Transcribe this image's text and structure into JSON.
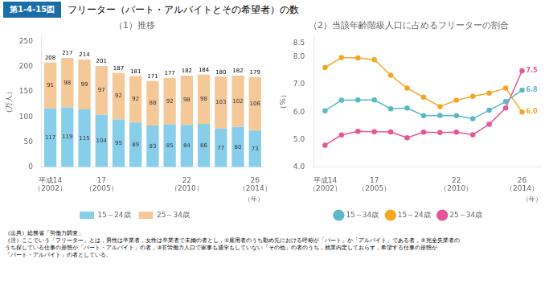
{
  "title_badge": {
    "text": "第1-4-15図",
    "color": "#1A6EA8"
  },
  "title": "フリーター（パート・アルバイトとその希望者）の数",
  "notes": [
    "（出典）総務省「労働力調査」",
    "（注）ここでいう「フリーター」とは，男性は卒業者，女性は卒業者で未婚の者とし，①雇用者のうち勤め先における呼称が「パート」か「アルバイト」である者，②完全失業者の",
    "うち探している仕事の形態が「パート・アルバイト」の者，③非労働力人口で家事も通学もしていない「その他」の者のうち，就業内定しておらず，希望する仕事の形態が",
    "「パート・アルバイト」の者としている。"
  ],
  "chart_data": [
    {
      "type": "bar",
      "stacked": true,
      "subtitle": "（1）推移",
      "xlabel": "（年）",
      "ylabel": "（万人）",
      "categories": [
        "平成14\n（2002）",
        null,
        null,
        "17\n（2005）",
        null,
        null,
        null,
        null,
        "22\n（2010）",
        null,
        null,
        null,
        "26\n（2014）"
      ],
      "series": [
        {
          "name": "15～24歳",
          "color": "#87CEEB",
          "values": [
            117,
            119,
            115,
            104,
            95,
            89,
            83,
            85,
            84,
            86,
            77,
            80,
            73
          ]
        },
        {
          "name": "25～34歳",
          "color": "#F5C897",
          "values": [
            91,
            98,
            99,
            97,
            92,
            92,
            88,
            92,
            98,
            98,
            103,
            102,
            106
          ]
        }
      ],
      "totals": [
        208,
        217,
        214,
        201,
        187,
        181,
        171,
        177,
        182,
        184,
        180,
        182,
        179
      ],
      "data_labels": true,
      "ylim": [
        0,
        260
      ],
      "yticks": [
        0,
        50,
        100,
        150,
        200,
        250
      ],
      "grid": false,
      "legend": "bottom"
    },
    {
      "type": "line",
      "subtitle": "（2）当該年齢階級人口に占めるフリーターの割合",
      "xlabel": "（年）",
      "ylabel": "（%）",
      "x": [
        14,
        15,
        16,
        17,
        18,
        19,
        20,
        21,
        22,
        23,
        24,
        25,
        26
      ],
      "series": [
        {
          "name": "15～34歳",
          "color": "#5BB8C8",
          "marker": "circle",
          "values": [
            6.05,
            6.43,
            6.44,
            6.44,
            6.12,
            6.15,
            5.87,
            5.88,
            5.87,
            5.76,
            6.07,
            6.38,
            6.8
          ]
        },
        {
          "name": "15～24歳",
          "color": "#F5A623",
          "marker": "circle",
          "values": [
            7.62,
            7.98,
            7.97,
            7.9,
            7.34,
            6.87,
            6.54,
            6.2,
            6.43,
            6.57,
            6.69,
            6.87,
            6.0
          ]
        },
        {
          "name": "25～34歳",
          "color": "#E8559A",
          "marker": "circle",
          "values": [
            4.8,
            5.17,
            5.3,
            5.29,
            5.28,
            5.07,
            5.27,
            5.26,
            5.27,
            5.18,
            5.56,
            6.15,
            7.5
          ]
        }
      ],
      "annotations": [
        {
          "series": "15～34歳",
          "x": 26,
          "y": 6.8,
          "text": "6.8"
        },
        {
          "series": "15～24歳",
          "x": 26,
          "y": 6.0,
          "text": "6.0"
        },
        {
          "series": "25～34歳",
          "x": 26,
          "y": 7.5,
          "text": "7.5"
        }
      ],
      "xlim": [
        13.3,
        27.2
      ],
      "xticks": [
        {
          "value": 14,
          "label": "平成14\n（2002）"
        },
        {
          "value": 17,
          "label": "17\n（2005）"
        },
        {
          "value": 22,
          "label": "22\n（2010）"
        },
        {
          "value": 26,
          "label": "26\n（2014）"
        }
      ],
      "ylim": [
        4.0,
        8.75
      ],
      "yticks": [
        {
          "value": 4.0,
          "label": "4.0"
        },
        {
          "value": 5.0,
          "label": "5.0"
        },
        {
          "value": 6.0,
          "label": "6.0"
        },
        {
          "value": 7.0,
          "label": "7.0"
        },
        {
          "value": 8.0,
          "label": "8.0"
        },
        8.5
      ],
      "grid": false,
      "legend": "bottom"
    }
  ]
}
